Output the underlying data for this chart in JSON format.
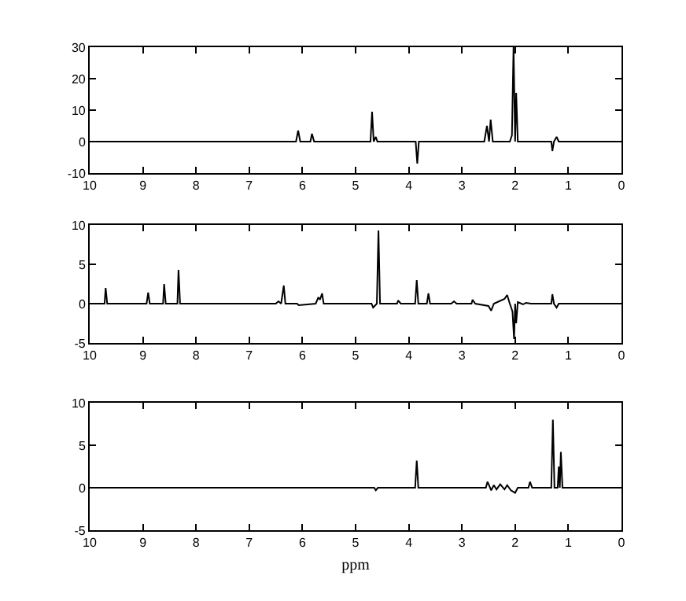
{
  "chart_data": [
    {
      "type": "line",
      "color": "#000000",
      "xlim": [
        10,
        0
      ],
      "ylim": [
        -10,
        30
      ],
      "xticks": [
        10,
        9,
        8,
        7,
        6,
        5,
        4,
        3,
        2,
        1,
        0
      ],
      "yticks": [
        -10,
        0,
        10,
        20,
        30
      ],
      "grid": false,
      "x": [
        10,
        6.12,
        6.08,
        6.04,
        5.85,
        5.82,
        5.78,
        4.72,
        4.69,
        4.66,
        4.62,
        4.59,
        3.87,
        3.84,
        3.81,
        2.58,
        2.53,
        2.49,
        2.46,
        2.42,
        2.1,
        2.06,
        2.03,
        2.0,
        1.98,
        1.95,
        1.32,
        1.3,
        1.27,
        1.22,
        1.18,
        0
      ],
      "values": [
        0,
        0,
        3.5,
        0,
        0,
        2.5,
        0,
        0,
        9.5,
        0,
        1.5,
        0,
        0,
        -7,
        0,
        0,
        5,
        0,
        7,
        0,
        0,
        2,
        30,
        0,
        15.5,
        0,
        0,
        -3,
        0,
        1.5,
        0,
        0
      ]
    },
    {
      "type": "line",
      "color": "#000000",
      "xlim": [
        10,
        0
      ],
      "ylim": [
        -5,
        10
      ],
      "xticks": [
        10,
        9,
        8,
        7,
        6,
        5,
        4,
        3,
        2,
        1,
        0
      ],
      "yticks": [
        -5,
        0,
        5,
        10
      ],
      "grid": false,
      "x": [
        10,
        9.72,
        9.7,
        9.67,
        8.93,
        8.9,
        8.87,
        8.62,
        8.6,
        8.57,
        8.35,
        8.33,
        8.3,
        6.5,
        6.45,
        6.4,
        6.35,
        6.32,
        6.1,
        6.07,
        5.75,
        5.7,
        5.67,
        5.63,
        5.6,
        4.7,
        4.67,
        4.6,
        4.57,
        4.54,
        4.22,
        4.2,
        4.15,
        3.88,
        3.85,
        3.82,
        3.66,
        3.63,
        3.6,
        3.2,
        3.15,
        3.1,
        2.82,
        2.8,
        2.75,
        2.5,
        2.45,
        2.4,
        2.3,
        2.2,
        2.15,
        2.1,
        2.05,
        2.02,
        2.0,
        1.98,
        1.95,
        1.85,
        1.8,
        1.7,
        1.32,
        1.3,
        1.27,
        1.22,
        1.18,
        0
      ],
      "values": [
        0,
        0,
        2,
        0,
        0,
        1.4,
        0,
        0,
        2.5,
        0,
        0,
        4.3,
        0,
        0,
        0.3,
        0,
        2.3,
        0,
        0,
        -0.2,
        0,
        0.8,
        0.5,
        1.3,
        0,
        0,
        -0.5,
        0,
        9.3,
        0,
        0,
        0.4,
        0,
        0,
        3,
        0,
        0,
        1.3,
        0,
        0,
        0.3,
        0,
        0,
        0.5,
        0,
        -0.3,
        -0.9,
        0,
        0.3,
        0.6,
        1.1,
        0,
        -1,
        -4.5,
        0,
        -2.5,
        0.2,
        -0.1,
        0.1,
        0,
        0,
        1.2,
        0,
        -0.5,
        0,
        0
      ]
    },
    {
      "type": "line",
      "color": "#000000",
      "xlim": [
        10,
        0
      ],
      "ylim": [
        -5,
        10
      ],
      "xticks": [
        10,
        9,
        8,
        7,
        6,
        5,
        4,
        3,
        2,
        1,
        0
      ],
      "yticks": [
        -5,
        0,
        5,
        10
      ],
      "grid": false,
      "xlabel": "ppm",
      "x": [
        10,
        4.65,
        4.62,
        4.58,
        3.88,
        3.85,
        3.82,
        2.55,
        2.52,
        2.45,
        2.4,
        2.35,
        2.28,
        2.2,
        2.15,
        2.08,
        2.0,
        1.95,
        1.75,
        1.72,
        1.68,
        1.32,
        1.29,
        1.26,
        1.2,
        1.18,
        1.16,
        1.14,
        1.11,
        0
      ],
      "values": [
        0,
        0,
        -0.3,
        0,
        0,
        3.2,
        0,
        0,
        0.7,
        -0.3,
        0.3,
        -0.2,
        0.4,
        -0.2,
        0.3,
        -0.3,
        -0.6,
        0,
        0,
        0.7,
        0,
        0,
        8,
        0,
        0,
        2.5,
        0,
        4.2,
        0,
        0
      ]
    }
  ]
}
